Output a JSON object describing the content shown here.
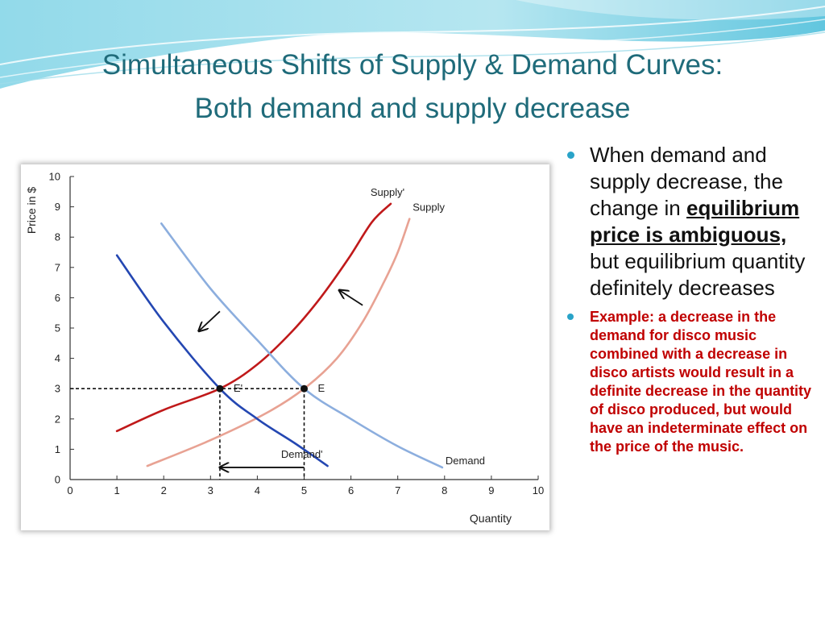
{
  "slide": {
    "title_line1": "Simultaneous Shifts of Supply & Demand Curves:",
    "title_line2": "Both demand and supply decrease"
  },
  "bullets": {
    "first": {
      "pre": "When demand and supply decrease, the change in",
      "emphasis": "equilibrium price is ambiguous,",
      "post": "but equilibrium quantity definitely decreases"
    },
    "second": "Example: a decrease in the demand for disco music combined with a decrease in disco artists would result in a definite decrease in the quantity of disco produced, but would have an indeterminate effect on the price of the music."
  },
  "colors": {
    "title": "#1f6b7a",
    "supply_original": "#e8a293",
    "supply_new": "#c0191a",
    "demand_original": "#8caede",
    "demand_new": "#2447b2",
    "bullet_dot": "#29a3c8",
    "example_text": "#c00000"
  },
  "chart_data": {
    "type": "line",
    "xlabel": "Quantity",
    "ylabel": "Price in $",
    "xlim": [
      0,
      10
    ],
    "ylim": [
      0,
      10
    ],
    "x_ticks": [
      "0",
      "1",
      "2",
      "3",
      "4",
      "5",
      "6",
      "7",
      "8",
      "9",
      "10"
    ],
    "y_ticks": [
      "0",
      "1",
      "2",
      "3",
      "4",
      "5",
      "6",
      "7",
      "8",
      "9",
      "10"
    ],
    "grid": false,
    "series": [
      {
        "name": "Supply",
        "color": "#e8a293",
        "points": [
          [
            1.65,
            0.45
          ],
          [
            3.0,
            1.3
          ],
          [
            4.2,
            2.2
          ],
          [
            5.0,
            3.0
          ],
          [
            5.7,
            4.0
          ],
          [
            6.25,
            5.2
          ],
          [
            6.7,
            6.5
          ],
          [
            7.0,
            7.5
          ],
          [
            7.25,
            8.6
          ]
        ]
      },
      {
        "name": "Supply'",
        "color": "#c0191a",
        "points": [
          [
            1.0,
            1.6
          ],
          [
            2.0,
            2.3
          ],
          [
            3.2,
            3.0
          ],
          [
            4.0,
            3.8
          ],
          [
            4.75,
            4.9
          ],
          [
            5.35,
            6.0
          ],
          [
            5.95,
            7.3
          ],
          [
            6.45,
            8.5
          ],
          [
            6.85,
            9.1
          ]
        ]
      },
      {
        "name": "Demand",
        "color": "#8caede",
        "points": [
          [
            1.95,
            8.45
          ],
          [
            3.0,
            6.3
          ],
          [
            4.0,
            4.6
          ],
          [
            5.0,
            3.0
          ],
          [
            6.0,
            2.0
          ],
          [
            7.0,
            1.1
          ],
          [
            7.95,
            0.4
          ]
        ]
      },
      {
        "name": "Demand'",
        "color": "#2447b2",
        "points": [
          [
            1.0,
            7.4
          ],
          [
            2.0,
            5.2
          ],
          [
            3.2,
            3.0
          ],
          [
            4.0,
            2.0
          ],
          [
            4.8,
            1.2
          ],
          [
            5.5,
            0.45
          ]
        ]
      }
    ],
    "equilibria": [
      {
        "label": "E'",
        "x": 3.2,
        "y": 3.0
      },
      {
        "label": "E",
        "x": 5.0,
        "y": 3.0
      }
    ],
    "arrows": [
      {
        "from": [
          3.2,
          5.55
        ],
        "to": [
          2.75,
          4.9
        ]
      },
      {
        "from": [
          6.25,
          5.75
        ],
        "to": [
          5.75,
          6.25
        ]
      },
      {
        "from": [
          5.0,
          0.4
        ],
        "to": [
          3.2,
          0.4
        ]
      }
    ]
  }
}
